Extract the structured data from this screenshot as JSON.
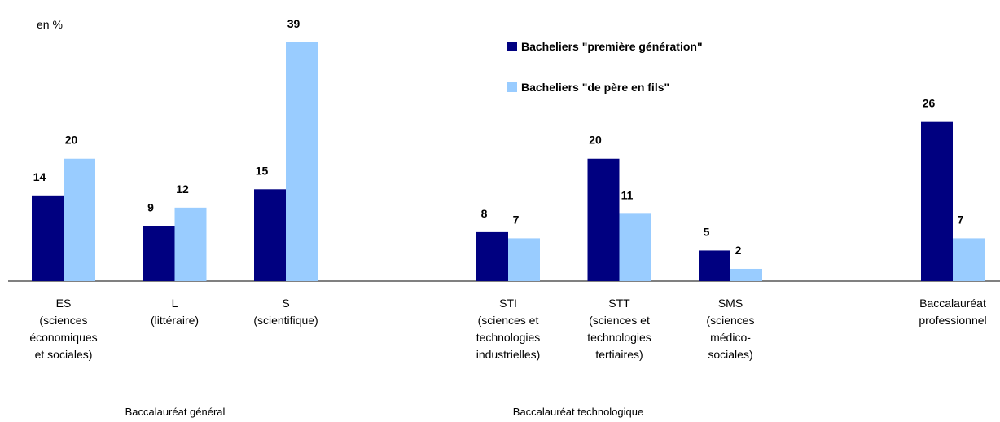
{
  "chart_data": {
    "type": "bar",
    "unit_label": "en %",
    "categories": [
      "ES\n(sciences\néconomiques\net sociales)",
      "L\n(littéraire)",
      "S\n(scientifique)",
      null,
      "STI\n(sciences et\ntechnologies\nindustrielles)",
      "STT\n(sciences et\ntechnologies\ntertiaires)",
      "SMS\n(sciences\nmédico-\nsociales)",
      null,
      "Baccalauréat\nprofessionnel"
    ],
    "series": [
      {
        "name": "Bacheliers \"première génération\"",
        "color": "#000080",
        "values": [
          14,
          9,
          15,
          null,
          8,
          20,
          5,
          null,
          26
        ]
      },
      {
        "name": "Bacheliers \"de père en fils\"",
        "color": "#99ccff",
        "values": [
          20,
          12,
          39,
          null,
          7,
          11,
          2,
          null,
          7
        ]
      }
    ],
    "groups": [
      "Baccalauréat général",
      "Baccalauréat technologique"
    ]
  }
}
